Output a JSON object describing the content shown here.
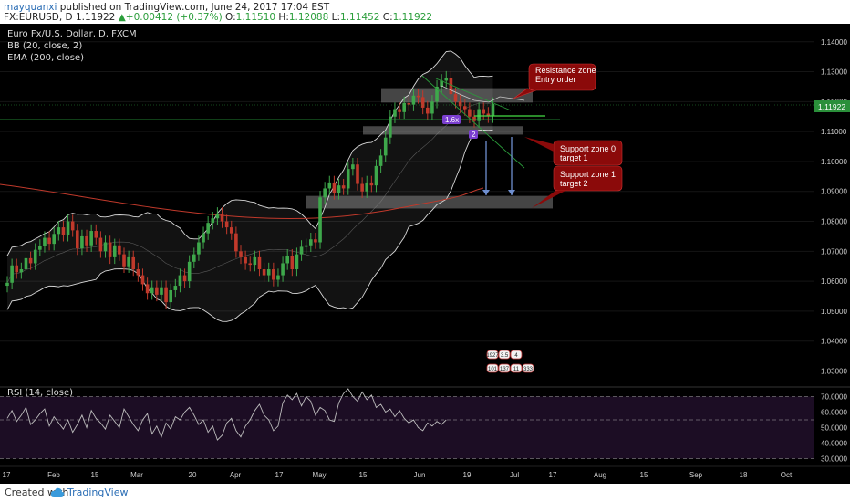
{
  "header": {
    "author": "mayquanxi",
    "published": "published on TradingView.com, June 24, 2017 17:04 EST",
    "symbol": "FX:EURUSD, D",
    "last": "1.11922",
    "change": "+0.00412 (+0.37%)",
    "open_label": "O:",
    "open": "1.11510",
    "high_label": "H:",
    "high": "1.12088",
    "low_label": "L:",
    "low": "1.11452",
    "close_label": "C:",
    "close": "1.11922"
  },
  "legend": {
    "title": "Euro Fx/U.S. Dollar, D, FXCM",
    "bb": "BB (20, close, 2)",
    "ema": "EMA (200, close)",
    "rsi": "RSI (14, close)"
  },
  "annotations": {
    "resistance": [
      "Resistance zone",
      "Entry order"
    ],
    "support0": [
      "Support zone 0",
      "target 1"
    ],
    "support1": [
      "Support zone 1",
      "target 2"
    ],
    "fib_label": "1.6x",
    "wave_label": "2",
    "badges_top": [
      "1927",
      "3.5",
      "4"
    ],
    "badges_bottom": [
      "101",
      "137",
      "11",
      "333"
    ]
  },
  "footer": {
    "created": "Created with",
    "brand": "TradingView"
  },
  "colors": {
    "up": "#3ea84b",
    "down": "#c0392b",
    "ema": "#c0392b",
    "bands": "#d8d8d8",
    "note_bg": "#8b0a0a",
    "projection": "#6f8fd0",
    "rsi_bg": "#1c0d24",
    "current_price": "#2a8f3a"
  },
  "chart_data": {
    "type": "candlestick",
    "symbol": "EURUSD",
    "timeframe": "D",
    "price_range": [
      1.0265,
      1.1445
    ],
    "y_ticks": [
      "1.14000",
      "1.13000",
      "1.12000",
      "1.11000",
      "1.10000",
      "1.09000",
      "1.08000",
      "1.07000",
      "1.06000",
      "1.05000",
      "1.04000",
      "1.03000"
    ],
    "last_price_label": "1.11922",
    "x_labels": [
      "17",
      "Feb",
      "15",
      "Mar",
      "20",
      "Apr",
      "17",
      "May",
      "15",
      "Jun",
      "19",
      "Jul",
      "17",
      "Aug",
      "15",
      "Sep",
      "18",
      "Oct"
    ],
    "candles": [
      [
        1.0585,
        1.0595
      ],
      [
        1.0595,
        1.0653
      ],
      [
        1.0653,
        1.063
      ],
      [
        1.063,
        1.064
      ],
      [
        1.064,
        1.0677
      ],
      [
        1.0677,
        1.066
      ],
      [
        1.066,
        1.0705
      ],
      [
        1.0705,
        1.0718
      ],
      [
        1.0718,
        1.0745
      ],
      [
        1.0745,
        1.0725
      ],
      [
        1.0725,
        1.0758
      ],
      [
        1.0758,
        1.078
      ],
      [
        1.078,
        1.0755
      ],
      [
        1.0755,
        1.08
      ],
      [
        1.08,
        1.077
      ],
      [
        1.077,
        1.071
      ],
      [
        1.071,
        1.075
      ],
      [
        1.075,
        1.072
      ],
      [
        1.072,
        1.0768
      ],
      [
        1.0768,
        1.0745
      ],
      [
        1.0745,
        1.07
      ],
      [
        1.07,
        1.073
      ],
      [
        1.073,
        1.068
      ],
      [
        1.068,
        1.072
      ],
      [
        1.072,
        1.069
      ],
      [
        1.069,
        1.065
      ],
      [
        1.065,
        1.068
      ],
      [
        1.068,
        1.064
      ],
      [
        1.064,
        1.062
      ],
      [
        1.062,
        1.059
      ],
      [
        1.059,
        1.056
      ],
      [
        1.056,
        1.058
      ],
      [
        1.058,
        1.0555
      ],
      [
        1.0555,
        1.058
      ],
      [
        1.058,
        1.053
      ],
      [
        1.053,
        1.057
      ],
      [
        1.057,
        1.0585
      ],
      [
        1.0585,
        1.062
      ],
      [
        1.062,
        1.06
      ],
      [
        1.06,
        1.0665
      ],
      [
        1.0665,
        1.069
      ],
      [
        1.069,
        1.073
      ],
      [
        1.073,
        1.076
      ],
      [
        1.076,
        1.0795
      ],
      [
        1.0795,
        1.081
      ],
      [
        1.081,
        1.0825
      ],
      [
        1.0825,
        1.08
      ],
      [
        1.08,
        1.078
      ],
      [
        1.078,
        1.076
      ],
      [
        1.076,
        1.07
      ],
      [
        1.07,
        1.068
      ],
      [
        1.068,
        1.066
      ],
      [
        1.066,
        1.0655
      ],
      [
        1.0655,
        1.068
      ],
      [
        1.068,
        1.064
      ],
      [
        1.064,
        1.062
      ],
      [
        1.062,
        1.064
      ],
      [
        1.064,
        1.0605
      ],
      [
        1.0605,
        1.062
      ],
      [
        1.062,
        1.066
      ],
      [
        1.066,
        1.0685
      ],
      [
        1.0685,
        1.064
      ],
      [
        1.064,
        1.069
      ],
      [
        1.069,
        1.0715
      ],
      [
        1.0715,
        1.072
      ],
      [
        1.072,
        1.074
      ],
      [
        1.074,
        1.073
      ],
      [
        1.073,
        1.088
      ],
      [
        1.088,
        1.091
      ],
      [
        1.091,
        1.093
      ],
      [
        1.093,
        1.0895
      ],
      [
        1.0895,
        1.092
      ],
      [
        1.092,
        1.091
      ],
      [
        1.091,
        1.0975
      ],
      [
        1.0975,
        1.099
      ],
      [
        1.099,
        1.0925
      ],
      [
        1.0925,
        1.09
      ],
      [
        1.09,
        1.093
      ],
      [
        1.093,
        1.092
      ],
      [
        1.092,
        1.0985
      ],
      [
        1.0985,
        1.102
      ],
      [
        1.102,
        1.108
      ],
      [
        1.108,
        1.115
      ],
      [
        1.115,
        1.1175
      ],
      [
        1.1175,
        1.1165
      ],
      [
        1.1165,
        1.1195
      ],
      [
        1.1195,
        1.119
      ],
      [
        1.119,
        1.122
      ],
      [
        1.122,
        1.1215
      ],
      [
        1.1215,
        1.118
      ],
      [
        1.118,
        1.116
      ],
      [
        1.116,
        1.12
      ],
      [
        1.12,
        1.125
      ],
      [
        1.125,
        1.127
      ],
      [
        1.127,
        1.128
      ],
      [
        1.128,
        1.1225
      ],
      [
        1.1225,
        1.12
      ],
      [
        1.12,
        1.1185
      ],
      [
        1.1185,
        1.1175
      ],
      [
        1.1175,
        1.115
      ],
      [
        1.115,
        1.1135
      ],
      [
        1.1135,
        1.1175
      ],
      [
        1.1175,
        1.116
      ],
      [
        1.116,
        1.1151
      ],
      [
        1.1151,
        1.1192
      ]
    ],
    "indicators": [
      "Bollinger Bands (20, close, 2)",
      "EMA (200, close)",
      "RSI (14, close)"
    ],
    "rsi": {
      "range": [
        25,
        75
      ],
      "ticks": [
        "70.0000",
        "60.0000",
        "50.0000",
        "40.0000",
        "30.0000"
      ],
      "levels": [
        70,
        55,
        30
      ],
      "values": [
        56,
        61,
        54,
        58,
        63,
        52,
        55,
        59,
        62,
        51,
        57,
        53,
        49,
        55,
        47,
        52,
        58,
        50,
        61,
        56,
        53,
        49,
        58,
        54,
        50,
        62,
        57,
        52,
        48,
        55,
        59,
        46,
        51,
        44,
        53,
        49,
        57,
        55,
        60,
        63,
        58,
        52,
        55,
        47,
        51,
        42,
        45,
        53,
        56,
        48,
        44,
        51,
        55,
        61,
        65,
        58,
        55,
        48,
        51,
        66,
        71,
        68,
        72,
        64,
        70,
        67,
        58,
        63,
        61,
        55,
        54,
        66,
        72,
        75,
        70,
        67,
        73,
        68,
        71,
        63,
        65,
        60,
        62,
        57,
        61,
        56,
        53,
        55,
        50,
        48,
        53,
        51,
        54,
        52,
        55
      ]
    },
    "zones": [
      {
        "name": "Resistance zone",
        "low": 1.1197,
        "high": 1.1245
      },
      {
        "name": "Support zone 0",
        "low": 1.109,
        "high": 1.1118
      },
      {
        "name": "Support zone 1",
        "low": 1.0843,
        "high": 1.0885
      }
    ]
  }
}
